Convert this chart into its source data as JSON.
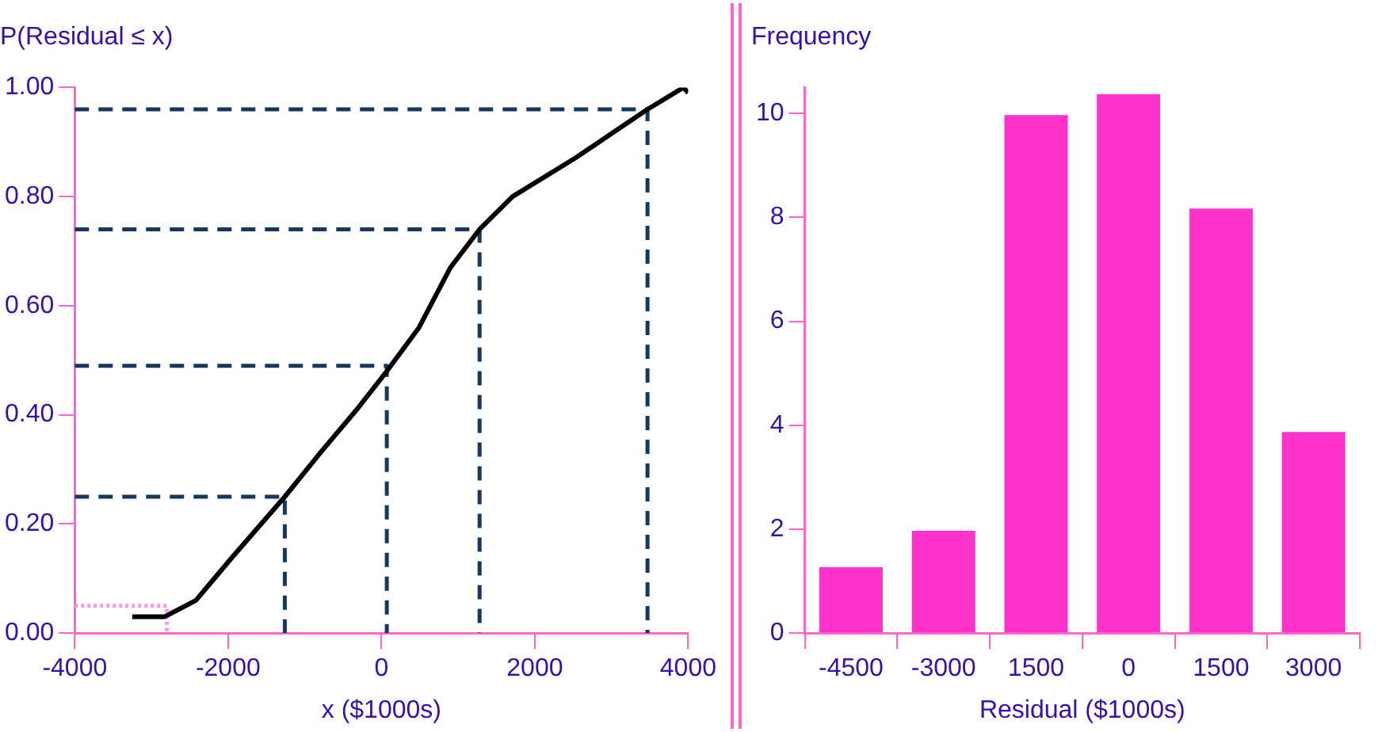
{
  "chart_data": [
    {
      "type": "line",
      "ylabel": "P(Residual ≤ x)",
      "xlabel": "x ($1000s)",
      "xlim": [
        -4000,
        4000
      ],
      "ylim": [
        0,
        1
      ],
      "xticks": [
        -4000,
        -2000,
        0,
        2000,
        4000
      ],
      "yticks": [
        {
          "value": 0,
          "label": "0.00"
        },
        {
          "value": 0.2,
          "label": "0.20"
        },
        {
          "value": 0.4,
          "label": "0.40"
        },
        {
          "value": 0.6,
          "label": "0.60"
        },
        {
          "value": 0.8,
          "label": "0.80"
        },
        {
          "value": 1,
          "label": "1.00"
        }
      ],
      "grid": false,
      "legend": false,
      "marker": "none",
      "series": [
        {
          "color": "#000000",
          "line_style": "solid",
          "x": [
            -3250,
            -2830,
            -2420,
            -1940,
            -1260,
            -800,
            -320,
            70,
            490,
            900,
            1280,
            1710,
            2520,
            3470,
            3940,
            4000
          ],
          "values": [
            0.03,
            0.03,
            0.06,
            0.14,
            0.25,
            0.33,
            0.41,
            0.48,
            0.56,
            0.67,
            0.74,
            0.8,
            0.87,
            0.96,
            1.0,
            0.99
          ]
        },
        {
          "color": "#17375e",
          "line_style": "dashed",
          "x": [
            -4000,
            -1260,
            -1260
          ],
          "values": [
            0.25,
            0.25,
            0
          ]
        },
        {
          "color": "#17375e",
          "line_style": "dashed",
          "x": [
            -4000,
            70,
            70
          ],
          "values": [
            0.49,
            0.49,
            0
          ]
        },
        {
          "color": "#17375e",
          "line_style": "dashed",
          "x": [
            -4000,
            1280,
            1280
          ],
          "values": [
            0.74,
            0.74,
            0
          ]
        },
        {
          "color": "#17375e",
          "line_style": "dashed",
          "x": [
            -4000,
            3470,
            3470
          ],
          "values": [
            0.96,
            0.96,
            0
          ]
        },
        {
          "color": "#ff99dd",
          "line_style": "dotted",
          "x": [
            -4000,
            -2800,
            -2800
          ],
          "values": [
            0.05,
            0.05,
            0
          ]
        }
      ]
    },
    {
      "type": "bar",
      "ylabel": "Frequency",
      "xlabel": "Residual ($1000s)",
      "categories": [
        "-4500",
        "-3000",
        "1500",
        "0",
        "1500",
        "3000"
      ],
      "values": [
        1.3,
        2,
        10,
        10.4,
        8.2,
        3.9
      ],
      "color": "#ff33cc",
      "ylim": [
        0,
        10.5
      ],
      "yticks": [
        0,
        2,
        4,
        6,
        8,
        10
      ],
      "grid": false,
      "legend": false
    }
  ]
}
